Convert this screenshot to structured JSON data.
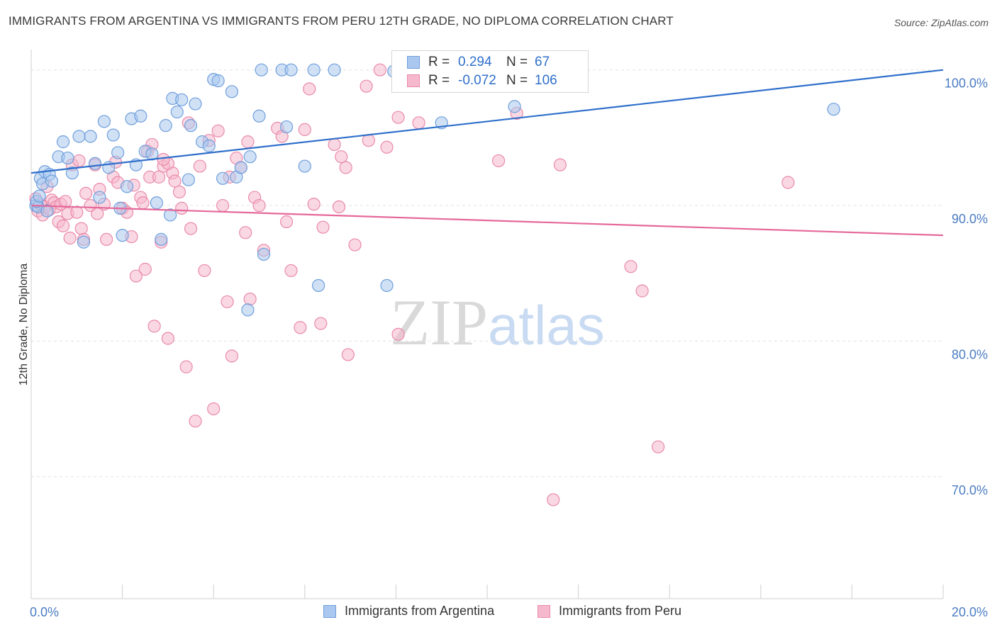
{
  "title": "IMMIGRANTS FROM ARGENTINA VS IMMIGRANTS FROM PERU 12TH GRADE, NO DIPLOMA CORRELATION CHART",
  "source": "Source: ZipAtlas.com",
  "watermark": {
    "zip": "ZIP",
    "atlas": "atlas"
  },
  "legend": {
    "rows": [
      {
        "r_label": "R =",
        "r_value": "0.294",
        "n_label": "N =",
        "n_value": "67"
      },
      {
        "r_label": "R =",
        "r_value": "-0.072",
        "n_label": "N =",
        "n_value": "106"
      }
    ]
  },
  "bottom_legend": [
    "Immigrants from Argentina",
    "Immigrants from Peru"
  ],
  "colors": {
    "argentina_fill": "#aac8ef",
    "argentina_stroke": "#6f9fdc",
    "argentina_line": "#2f6fcb",
    "peru_fill": "#f6b8cc",
    "peru_stroke": "#e98aa9",
    "peru_line": "#e5689a",
    "tick_label": "#4a7cc4",
    "grid": "#e3e3e3"
  },
  "chart_data": {
    "type": "scatter",
    "title": "IMMIGRANTS FROM ARGENTINA VS IMMIGRANTS FROM PERU 12TH GRADE, NO DIPLOMA CORRELATION CHART",
    "xlabel": "",
    "ylabel": "12th Grade, No Diploma",
    "xlim": [
      0,
      20
    ],
    "ylim": [
      61,
      101.5
    ],
    "x_tick_labels": [
      "0.0%",
      "20.0%"
    ],
    "y_ticks": [
      70,
      80,
      90,
      100
    ],
    "y_tick_labels": [
      "70.0%",
      "80.0%",
      "90.0%",
      "100.0%"
    ],
    "grid": true,
    "legend_position": "top-center",
    "series": [
      {
        "name": "Immigrants from Argentina",
        "r": 0.294,
        "n": 67,
        "trend": [
          [
            0,
            92.4
          ],
          [
            20,
            100.0
          ]
        ],
        "points": [
          [
            0.1,
            90.0
          ],
          [
            0.15,
            89.9
          ],
          [
            0.2,
            92.0
          ],
          [
            0.25,
            91.6
          ],
          [
            0.3,
            92.5
          ],
          [
            0.4,
            92.3
          ],
          [
            0.45,
            91.8
          ],
          [
            0.6,
            93.6
          ],
          [
            0.7,
            94.7
          ],
          [
            0.8,
            93.5
          ],
          [
            0.9,
            92.4
          ],
          [
            1.05,
            95.1
          ],
          [
            1.15,
            87.3
          ],
          [
            1.3,
            95.1
          ],
          [
            1.4,
            93.1
          ],
          [
            1.5,
            90.6
          ],
          [
            1.6,
            96.2
          ],
          [
            1.7,
            92.8
          ],
          [
            1.8,
            95.2
          ],
          [
            1.9,
            93.9
          ],
          [
            1.95,
            89.8
          ],
          [
            2.0,
            87.8
          ],
          [
            2.1,
            91.4
          ],
          [
            2.2,
            96.4
          ],
          [
            2.3,
            93.0
          ],
          [
            2.4,
            96.6
          ],
          [
            2.5,
            94.0
          ],
          [
            2.65,
            93.8
          ],
          [
            2.75,
            90.2
          ],
          [
            2.85,
            87.5
          ],
          [
            2.95,
            95.9
          ],
          [
            3.05,
            89.3
          ],
          [
            3.1,
            97.9
          ],
          [
            3.2,
            96.9
          ],
          [
            3.3,
            97.8
          ],
          [
            3.45,
            91.9
          ],
          [
            3.5,
            95.9
          ],
          [
            3.6,
            97.5
          ],
          [
            3.75,
            94.7
          ],
          [
            3.9,
            94.4
          ],
          [
            4.0,
            99.3
          ],
          [
            4.1,
            99.2
          ],
          [
            4.2,
            92.0
          ],
          [
            4.4,
            98.4
          ],
          [
            4.5,
            92.1
          ],
          [
            4.6,
            92.8
          ],
          [
            4.75,
            82.3
          ],
          [
            4.8,
            93.6
          ],
          [
            5.0,
            96.6
          ],
          [
            5.05,
            100.0
          ],
          [
            5.1,
            86.4
          ],
          [
            5.5,
            100.0
          ],
          [
            5.6,
            95.8
          ],
          [
            5.7,
            100.0
          ],
          [
            6.0,
            92.9
          ],
          [
            6.2,
            100.0
          ],
          [
            6.3,
            84.1
          ],
          [
            6.65,
            100.0
          ],
          [
            7.8,
            84.1
          ],
          [
            7.95,
            99.9
          ],
          [
            8.4,
            99.8
          ],
          [
            9.0,
            96.1
          ],
          [
            10.6,
            97.3
          ],
          [
            17.6,
            97.1
          ],
          [
            0.12,
            90.3
          ],
          [
            0.18,
            90.7
          ],
          [
            0.35,
            89.6
          ]
        ]
      },
      {
        "name": "Immigrants from Peru",
        "r": -0.072,
        "n": 106,
        "trend": [
          [
            0,
            90.0
          ],
          [
            20,
            87.8
          ]
        ],
        "points": [
          [
            0.1,
            90.5
          ],
          [
            0.15,
            89.6
          ],
          [
            0.2,
            90.1
          ],
          [
            0.25,
            89.3
          ],
          [
            0.3,
            89.9
          ],
          [
            0.35,
            91.4
          ],
          [
            0.4,
            89.7
          ],
          [
            0.45,
            90.4
          ],
          [
            0.5,
            90.2
          ],
          [
            0.55,
            89.9
          ],
          [
            0.6,
            88.8
          ],
          [
            0.65,
            90.1
          ],
          [
            0.7,
            88.5
          ],
          [
            0.75,
            90.3
          ],
          [
            0.8,
            89.4
          ],
          [
            0.85,
            87.6
          ],
          [
            0.9,
            93.0
          ],
          [
            1.0,
            89.5
          ],
          [
            1.05,
            93.3
          ],
          [
            1.1,
            88.3
          ],
          [
            1.15,
            87.5
          ],
          [
            1.2,
            90.9
          ],
          [
            1.3,
            90.0
          ],
          [
            1.4,
            93.0
          ],
          [
            1.45,
            89.4
          ],
          [
            1.5,
            91.2
          ],
          [
            1.6,
            90.1
          ],
          [
            1.65,
            87.5
          ],
          [
            1.8,
            92.1
          ],
          [
            1.85,
            93.2
          ],
          [
            1.9,
            91.7
          ],
          [
            2.0,
            89.8
          ],
          [
            2.1,
            89.5
          ],
          [
            2.2,
            87.7
          ],
          [
            2.25,
            91.5
          ],
          [
            2.3,
            84.8
          ],
          [
            2.4,
            90.6
          ],
          [
            2.5,
            85.3
          ],
          [
            2.55,
            94.0
          ],
          [
            2.6,
            92.1
          ],
          [
            2.65,
            94.5
          ],
          [
            2.7,
            81.1
          ],
          [
            2.8,
            92.1
          ],
          [
            2.85,
            87.3
          ],
          [
            2.9,
            92.9
          ],
          [
            3.0,
            80.2
          ],
          [
            3.1,
            92.4
          ],
          [
            3.15,
            91.8
          ],
          [
            3.25,
            91.0
          ],
          [
            3.3,
            89.8
          ],
          [
            3.4,
            78.1
          ],
          [
            3.45,
            96.1
          ],
          [
            3.5,
            88.3
          ],
          [
            3.6,
            74.1
          ],
          [
            3.7,
            92.9
          ],
          [
            3.8,
            85.2
          ],
          [
            3.9,
            94.8
          ],
          [
            4.0,
            75.0
          ],
          [
            4.1,
            95.5
          ],
          [
            4.2,
            90.0
          ],
          [
            4.3,
            82.9
          ],
          [
            4.35,
            92.1
          ],
          [
            4.4,
            78.9
          ],
          [
            4.5,
            93.5
          ],
          [
            4.6,
            92.8
          ],
          [
            4.7,
            88.0
          ],
          [
            4.75,
            94.7
          ],
          [
            4.8,
            83.1
          ],
          [
            4.9,
            90.6
          ],
          [
            5.0,
            90.0
          ],
          [
            5.1,
            86.7
          ],
          [
            5.4,
            95.7
          ],
          [
            5.5,
            95.1
          ],
          [
            5.6,
            88.8
          ],
          [
            5.7,
            85.2
          ],
          [
            5.9,
            81.0
          ],
          [
            6.0,
            95.6
          ],
          [
            6.1,
            98.6
          ],
          [
            6.2,
            90.1
          ],
          [
            6.35,
            81.3
          ],
          [
            6.4,
            88.4
          ],
          [
            6.65,
            94.5
          ],
          [
            6.75,
            89.9
          ],
          [
            6.8,
            93.6
          ],
          [
            6.9,
            92.8
          ],
          [
            6.95,
            79.0
          ],
          [
            7.1,
            87.1
          ],
          [
            7.35,
            98.8
          ],
          [
            7.4,
            94.8
          ],
          [
            7.65,
            100.0
          ],
          [
            7.8,
            94.3
          ],
          [
            8.05,
            96.5
          ],
          [
            8.05,
            80.5
          ],
          [
            8.5,
            96.1
          ],
          [
            8.85,
            100.0
          ],
          [
            10.25,
            93.3
          ],
          [
            10.65,
            96.8
          ],
          [
            11.45,
            68.3
          ],
          [
            11.6,
            93.0
          ],
          [
            13.15,
            85.5
          ],
          [
            13.4,
            83.7
          ],
          [
            13.75,
            72.2
          ],
          [
            16.6,
            91.7
          ],
          [
            3.0,
            93.1
          ],
          [
            2.9,
            93.4
          ],
          [
            2.45,
            90.2
          ]
        ]
      }
    ]
  }
}
